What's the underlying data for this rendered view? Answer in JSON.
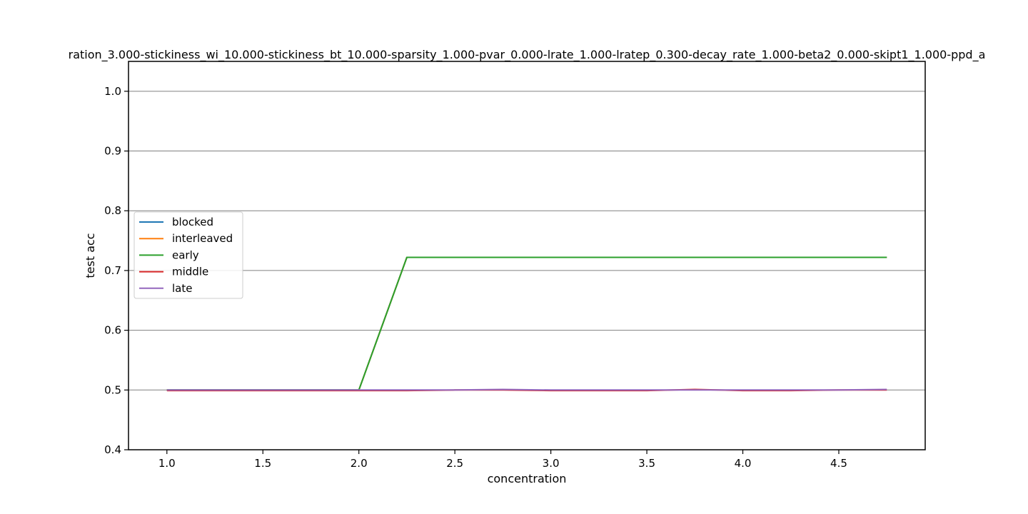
{
  "chart_data": {
    "type": "line",
    "title": "ration_3.000-stickiness_wi_10.000-stickiness_bt_10.000-sparsity_1.000-pvar_0.000-lrate_1.000-lratep_0.300-decay_rate_1.000-beta2_0.000-skipt1_1.000-ppd_a",
    "xlabel": "concentration",
    "ylabel": "test acc",
    "xlim": [
      0.8,
      4.95
    ],
    "ylim": [
      0.4,
      1.05
    ],
    "xticks": [
      "1.0",
      "1.5",
      "2.0",
      "2.5",
      "3.0",
      "3.5",
      "4.0",
      "4.5"
    ],
    "yticks": [
      "0.4",
      "0.5",
      "0.6",
      "0.7",
      "0.8",
      "0.9",
      "1.0"
    ],
    "grid": "horizontal",
    "legend_position": "center-left",
    "x": [
      1.0,
      1.25,
      1.5,
      1.75,
      2.0,
      2.25,
      2.5,
      2.75,
      3.0,
      3.25,
      3.5,
      3.75,
      4.0,
      4.25,
      4.5,
      4.75
    ],
    "series": [
      {
        "name": "blocked",
        "color": "#1f77b4",
        "values": [
          0.5,
          0.5,
          0.5,
          0.5,
          0.5,
          0.722,
          0.722,
          0.722,
          0.722,
          0.722,
          0.722,
          0.722,
          0.722,
          0.722,
          0.722,
          0.722
        ]
      },
      {
        "name": "interleaved",
        "color": "#ff7f0e",
        "values": [
          0.5,
          0.5,
          0.5,
          0.5,
          0.5,
          0.722,
          0.722,
          0.722,
          0.722,
          0.722,
          0.722,
          0.722,
          0.722,
          0.722,
          0.722,
          0.722
        ]
      },
      {
        "name": "early",
        "color": "#2ca02c",
        "values": [
          0.5,
          0.5,
          0.5,
          0.5,
          0.5,
          0.722,
          0.722,
          0.722,
          0.722,
          0.722,
          0.722,
          0.722,
          0.722,
          0.722,
          0.722,
          0.722
        ]
      },
      {
        "name": "middle",
        "color": "#d62728",
        "values": [
          0.499,
          0.499,
          0.499,
          0.499,
          0.499,
          0.499,
          0.5,
          0.5,
          0.499,
          0.499,
          0.499,
          0.501,
          0.499,
          0.499,
          0.5,
          0.5
        ]
      },
      {
        "name": "late",
        "color": "#9467bd",
        "values": [
          0.5,
          0.5,
          0.5,
          0.5,
          0.5,
          0.5,
          0.5,
          0.501,
          0.5,
          0.5,
          0.5,
          0.5,
          0.5,
          0.5,
          0.5,
          0.501
        ]
      }
    ]
  }
}
